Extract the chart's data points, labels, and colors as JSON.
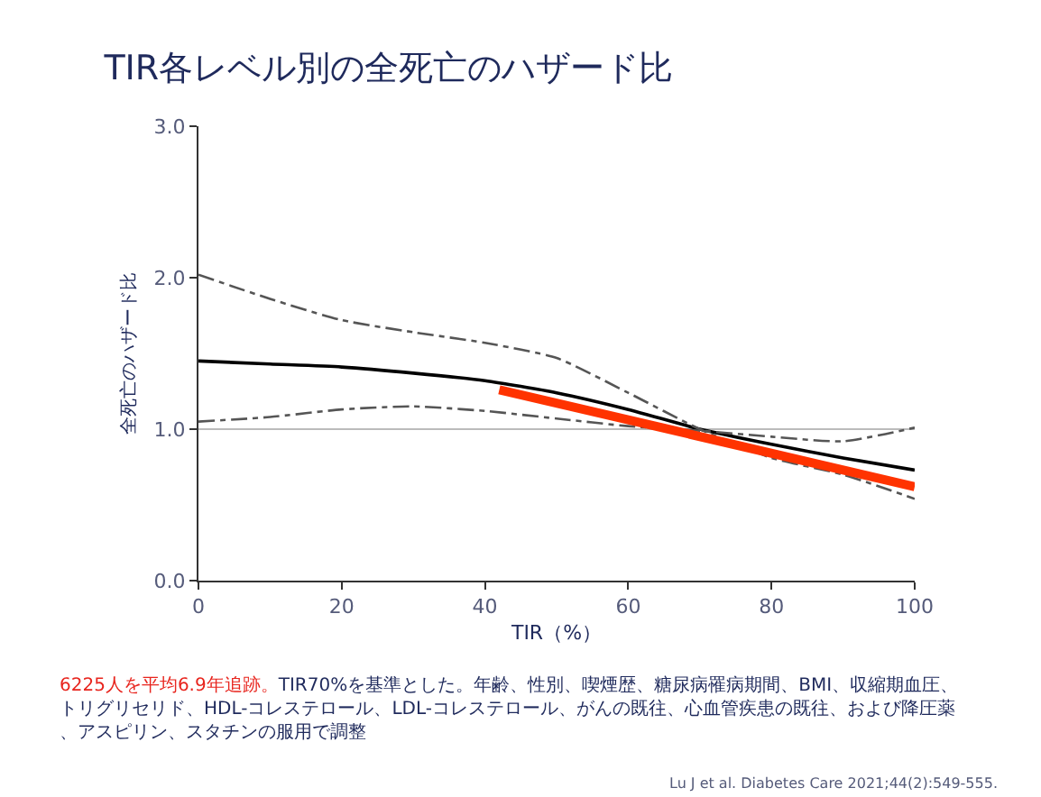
{
  "chart_data": {
    "type": "line",
    "title": "TIR各レベル別の全死亡のハザード比",
    "xlabel": "TIR（%）",
    "ylabel": "全死亡のハザード比",
    "x": [
      0,
      10,
      20,
      30,
      40,
      50,
      60,
      70,
      80,
      90,
      100
    ],
    "series": [
      {
        "color": "#000000",
        "line_style": "solid",
        "values": [
          1.45,
          1.43,
          1.41,
          1.37,
          1.32,
          1.24,
          1.13,
          1.0,
          0.9,
          0.81,
          0.73
        ]
      },
      {
        "color": "#555555",
        "line_style": "dashed",
        "values": [
          2.02,
          1.86,
          1.72,
          1.64,
          1.57,
          1.47,
          1.24,
          1.0,
          0.81,
          0.7,
          0.54
        ]
      },
      {
        "color": "#555555",
        "line_style": "dashed",
        "values": [
          1.05,
          1.08,
          1.13,
          1.15,
          1.12,
          1.07,
          1.02,
          0.99,
          0.95,
          0.92,
          1.01
        ]
      },
      {
        "color": "#ff3300",
        "line_style": "solid",
        "x": [
          42,
          100
        ],
        "values": [
          1.26,
          0.62
        ]
      }
    ],
    "xlim": [
      0,
      100
    ],
    "xticks": [
      0,
      20,
      40,
      60,
      80,
      100
    ],
    "ylim": [
      0,
      3
    ],
    "yticks": [
      {
        "value": 0,
        "label": "0.0"
      },
      {
        "value": 1,
        "label": "1.0"
      },
      {
        "value": 2,
        "label": "2.0"
      },
      {
        "value": 3,
        "label": "3.0"
      }
    ],
    "ref_lines": [
      {
        "axis": "y",
        "value": 1,
        "color": "#bbbbbb"
      }
    ],
    "annotations": [
      "6225人を平均6.9年追跡。",
      "TIR70%を基準とした。年齢、性別、喫煙歴、糖尿病罹病期間、BMI、収縮期血圧、トリグリセリド、HDL-コレステロール、LDL-コレステロール、がんの既往、心血管疾患の既往、および降圧薬、アスピリン、スタチンの服用で調整",
      "Lu J et al. Diabetes Care 2021;44(2):549-555."
    ]
  }
}
